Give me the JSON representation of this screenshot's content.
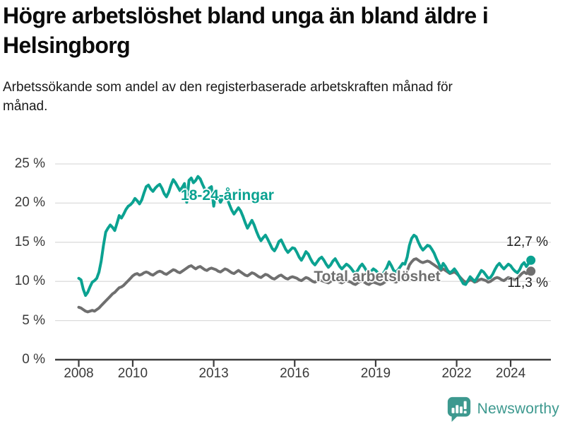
{
  "chart_data": {
    "type": "line",
    "title": "Högre arbetslöshet bland unga än bland äldre i Helsingborg",
    "subtitle": "Arbetssökande som andel av den registerbaserade arbetskraften månad för månad.",
    "x_unit": "month",
    "x_start": "2008-01",
    "x_end": "2024-10",
    "x_tick_years": [
      2008,
      2010,
      2013,
      2016,
      2019,
      2022,
      2024
    ],
    "x_tick_labels": [
      "2008",
      "2010",
      "2013",
      "2016",
      "2019",
      "2022",
      "2024"
    ],
    "y_ticks": [
      0,
      5,
      10,
      15,
      20,
      25
    ],
    "y_tick_suffix": " %",
    "ylim": [
      0,
      25
    ],
    "grid": "horizontal",
    "legend_position": "inline-labels",
    "series": [
      {
        "name": "Total arbetslöshet",
        "color": "#6f6f6f",
        "end_label": "11,3 %",
        "end_value": 11.3,
        "values": [
          6.7,
          6.6,
          6.4,
          6.2,
          6.1,
          6.2,
          6.3,
          6.2,
          6.4,
          6.6,
          6.9,
          7.2,
          7.5,
          7.8,
          8.1,
          8.4,
          8.6,
          8.9,
          9.2,
          9.3,
          9.5,
          9.8,
          10.1,
          10.4,
          10.7,
          10.9,
          11.0,
          10.8,
          10.9,
          11.1,
          11.2,
          11.1,
          10.9,
          10.8,
          11.0,
          11.2,
          11.3,
          11.2,
          11.0,
          10.9,
          11.1,
          11.3,
          11.5,
          11.4,
          11.2,
          11.1,
          11.3,
          11.5,
          11.7,
          11.9,
          12.0,
          11.8,
          11.6,
          11.8,
          11.9,
          11.7,
          11.5,
          11.4,
          11.6,
          11.7,
          11.6,
          11.5,
          11.3,
          11.2,
          11.4,
          11.6,
          11.5,
          11.3,
          11.1,
          11.0,
          11.2,
          11.4,
          11.2,
          11.0,
          10.8,
          10.7,
          10.9,
          11.1,
          11.0,
          10.8,
          10.6,
          10.5,
          10.7,
          10.9,
          10.8,
          10.6,
          10.4,
          10.3,
          10.5,
          10.7,
          10.8,
          10.6,
          10.4,
          10.3,
          10.5,
          10.6,
          10.5,
          10.4,
          10.2,
          10.1,
          10.3,
          10.5,
          10.4,
          10.2,
          10.0,
          9.9,
          10.1,
          10.2,
          10.1,
          10.0,
          9.9,
          9.8,
          10.0,
          10.2,
          10.3,
          10.1,
          9.9,
          9.8,
          10.0,
          10.1,
          10.0,
          9.9,
          9.7,
          9.6,
          9.8,
          10.0,
          10.1,
          9.9,
          9.7,
          9.6,
          9.8,
          9.9,
          9.8,
          9.7,
          9.6,
          9.7,
          9.9,
          10.1,
          10.3,
          10.1,
          10.0,
          9.9,
          10.1,
          10.3,
          10.5,
          10.6,
          11.3,
          12.1,
          12.5,
          12.8,
          12.9,
          12.7,
          12.5,
          12.4,
          12.5,
          12.6,
          12.5,
          12.3,
          12.1,
          11.9,
          11.7,
          11.4,
          11.6,
          11.4,
          11.2,
          11.0,
          11.1,
          11.2,
          11.0,
          10.7,
          10.4,
          10.1,
          9.9,
          10.0,
          10.2,
          10.1,
          9.9,
          10.0,
          10.2,
          10.3,
          10.2,
          10.1,
          9.9,
          10.0,
          10.2,
          10.4,
          10.5,
          10.4,
          10.2,
          10.1,
          10.3,
          10.5,
          10.4,
          10.3,
          10.2,
          10.4,
          10.7,
          11.0,
          11.2,
          11.0,
          11.1,
          11.3
        ]
      },
      {
        "name": "18-24-åringar",
        "color": "#0ba291",
        "end_label": "12,7 %",
        "end_value": 12.7,
        "values": [
          10.4,
          10.2,
          9.0,
          8.2,
          8.6,
          9.3,
          9.9,
          10.1,
          10.4,
          11.2,
          12.6,
          14.6,
          16.3,
          16.8,
          17.2,
          16.9,
          16.5,
          17.4,
          18.4,
          18.1,
          18.6,
          19.2,
          19.6,
          19.8,
          20.1,
          20.6,
          20.3,
          19.9,
          20.4,
          21.3,
          22.1,
          22.3,
          21.8,
          21.5,
          21.9,
          22.2,
          22.4,
          21.9,
          21.2,
          20.8,
          21.4,
          22.3,
          23.0,
          22.6,
          22.1,
          21.6,
          22.0,
          22.5,
          20.1,
          22.9,
          23.2,
          22.6,
          22.9,
          23.4,
          23.1,
          22.4,
          21.8,
          21.4,
          21.9,
          22.1,
          19.6,
          21.4,
          20.8,
          20.1,
          20.6,
          21.2,
          20.6,
          19.8,
          19.1,
          18.6,
          19.0,
          19.4,
          19.0,
          18.3,
          17.5,
          16.8,
          17.3,
          17.8,
          17.2,
          16.4,
          15.7,
          15.2,
          15.6,
          15.9,
          15.4,
          14.8,
          14.2,
          13.9,
          14.4,
          15.1,
          15.3,
          14.7,
          14.1,
          13.7,
          14.0,
          14.3,
          14.2,
          13.7,
          13.1,
          12.7,
          13.2,
          13.8,
          13.5,
          12.9,
          12.4,
          12.1,
          12.5,
          12.9,
          13.1,
          12.7,
          12.2,
          11.8,
          12.1,
          12.6,
          12.9,
          12.4,
          11.9,
          11.6,
          11.9,
          12.2,
          12.0,
          11.7,
          11.3,
          11.0,
          11.4,
          11.9,
          12.2,
          11.8,
          11.3,
          11.0,
          11.3,
          11.6,
          11.4,
          11.1,
          10.8,
          10.9,
          11.3,
          11.8,
          12.5,
          12.0,
          11.4,
          11.2,
          11.5,
          11.9,
          12.3,
          12.2,
          13.1,
          14.6,
          15.5,
          15.9,
          15.7,
          15.0,
          14.4,
          14.0,
          14.3,
          14.6,
          14.5,
          14.1,
          13.6,
          12.9,
          12.3,
          11.6,
          12.3,
          11.9,
          11.4,
          11.1,
          11.3,
          11.6,
          11.2,
          10.7,
          10.2,
          9.7,
          9.6,
          10.1,
          10.6,
          10.3,
          10.0,
          10.4,
          10.9,
          11.4,
          11.2,
          10.8,
          10.4,
          10.5,
          10.9,
          11.5,
          12.0,
          12.3,
          11.9,
          11.6,
          11.9,
          12.2,
          12.0,
          11.6,
          11.3,
          11.1,
          11.5,
          12.1,
          12.4,
          11.9,
          12.3,
          12.7
        ]
      }
    ],
    "colors": {
      "grid": "#dcdcdc",
      "axis": "#3c3c3c",
      "tick_text": "#3a3a3a",
      "accent_teal": "#0ba291",
      "accent_gray": "#6f6f6f"
    }
  },
  "footer": {
    "brand": "Newsworthy",
    "brand_color": "#3d998f"
  }
}
